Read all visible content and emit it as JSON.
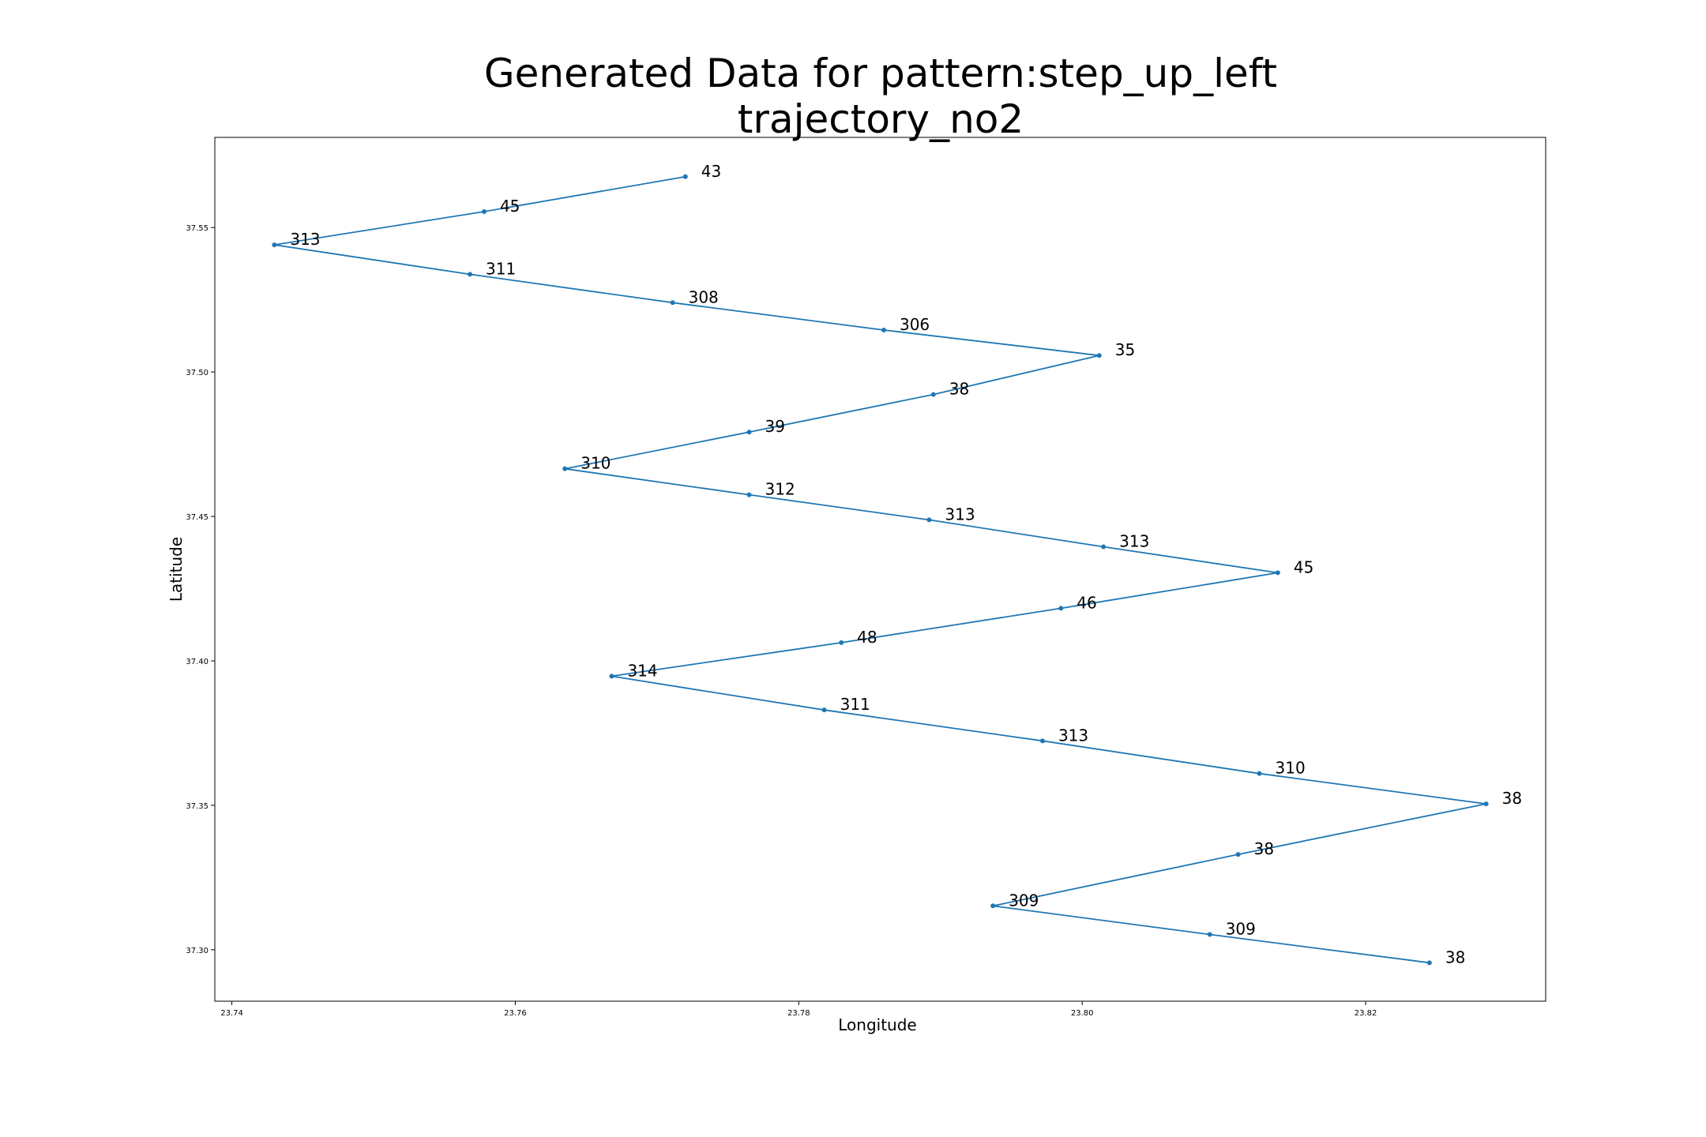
{
  "chart_data": {
    "type": "line",
    "title_line1": "Generated Data for pattern:step_up_left",
    "title_line2": "trajectory_no2",
    "xlabel": "Longitude",
    "ylabel": "Latitude",
    "xlim": [
      23.7388,
      23.8327
    ],
    "ylim": [
      37.2822,
      37.5812
    ],
    "x_ticks": [
      23.74,
      23.76,
      23.78,
      23.8,
      23.82
    ],
    "x_tick_labels": [
      "23.74",
      "23.76",
      "23.78",
      "23.80",
      "23.82"
    ],
    "y_ticks": [
      37.3,
      37.35,
      37.4,
      37.45,
      37.5,
      37.55
    ],
    "y_tick_labels": [
      "37.30",
      "37.35",
      "37.40",
      "37.45",
      "37.50",
      "37.55"
    ],
    "grid": false,
    "line_color": "#1f77b4",
    "series": [
      {
        "points": [
          {
            "x": 23.772,
            "y": 37.5676,
            "label": "43"
          },
          {
            "x": 23.7578,
            "y": 37.5555,
            "label": "45"
          },
          {
            "x": 23.743,
            "y": 37.544,
            "label": "313"
          },
          {
            "x": 23.7568,
            "y": 37.5338,
            "label": "311"
          },
          {
            "x": 23.7711,
            "y": 37.524,
            "label": "308"
          },
          {
            "x": 23.786,
            "y": 37.5145,
            "label": "306"
          },
          {
            "x": 23.8012,
            "y": 37.5057,
            "label": "35"
          },
          {
            "x": 23.7895,
            "y": 37.4922,
            "label": "38"
          },
          {
            "x": 23.7765,
            "y": 37.4792,
            "label": "39"
          },
          {
            "x": 23.7635,
            "y": 37.4665,
            "label": "310"
          },
          {
            "x": 23.7765,
            "y": 37.4575,
            "label": "312"
          },
          {
            "x": 23.7892,
            "y": 37.4488,
            "label": "313"
          },
          {
            "x": 23.8015,
            "y": 37.4395,
            "label": "313"
          },
          {
            "x": 23.8138,
            "y": 37.4305,
            "label": "45"
          },
          {
            "x": 23.7985,
            "y": 37.4182,
            "label": "46"
          },
          {
            "x": 23.783,
            "y": 37.4063,
            "label": "48"
          },
          {
            "x": 23.7668,
            "y": 37.3947,
            "label": "314"
          },
          {
            "x": 23.7818,
            "y": 37.383,
            "label": "311"
          },
          {
            "x": 23.7972,
            "y": 37.3723,
            "label": "313"
          },
          {
            "x": 23.8125,
            "y": 37.361,
            "label": "310"
          },
          {
            "x": 23.8285,
            "y": 37.3505,
            "label": "38"
          },
          {
            "x": 23.811,
            "y": 37.333,
            "label": "38"
          },
          {
            "x": 23.7937,
            "y": 37.3152,
            "label": "309"
          },
          {
            "x": 23.809,
            "y": 37.3053,
            "label": "309"
          },
          {
            "x": 23.8245,
            "y": 37.2955,
            "label": "38"
          }
        ]
      }
    ]
  }
}
